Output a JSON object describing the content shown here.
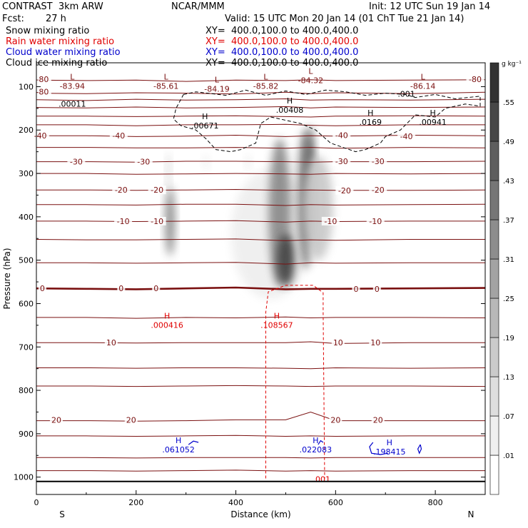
{
  "header": {
    "model": "CONTRAST  3km ARW",
    "org": "NCAR/MMM",
    "init": "Init: 12 UTC Sun 19 Jan 14",
    "fcst_label": "Fcst:",
    "fcst_value": "27 h",
    "valid": "Valid: 15 UTC Mon 20 Jan 14 (01 ChT Tue 21 Jan 14)",
    "fields": [
      {
        "name": "Snow mixing ratio",
        "xy": "XY=  400.0,100.0 to 400.0,400.0",
        "color": "#000000"
      },
      {
        "name": "Rain water mixing ratio",
        "xy": "XY=  400.0,100.0 to 400.0,400.0",
        "color": "#e00000"
      },
      {
        "name": "Cloud water mixing ratio",
        "xy": "XY=  400.0,100.0 to 400.0,400.0",
        "color": "#0000cc"
      },
      {
        "name": "Cloud ice mixing ratio",
        "xy": "XY=  400.0,100.0 to 400.0,400.0",
        "color": "#000000"
      }
    ]
  },
  "chart_data": {
    "type": "heatmap",
    "xlabel": "Distance (km)",
    "ylabel": "Pressure (hPa)",
    "xlim": [
      0,
      900
    ],
    "ylim": [
      1040,
      45
    ],
    "x_ticks": [
      0,
      200,
      400,
      600,
      800
    ],
    "y_ticks": [
      100,
      200,
      300,
      400,
      500,
      600,
      700,
      800,
      900,
      1000
    ],
    "x_end_labels": {
      "left": "S",
      "right": "N"
    },
    "colorbar": {
      "unit": "g kg⁻¹",
      "levels": [
        ".01",
        ".07",
        ".13",
        ".19",
        ".25",
        ".31",
        ".37",
        ".43",
        ".49",
        ".55"
      ],
      "shades": [
        "#ffffff",
        "#efefef",
        "#dedede",
        "#cbcbcb",
        "#b8b8b8",
        "#a3a3a3",
        "#8d8d8d",
        "#767676",
        "#5e5e5e",
        "#474747",
        "#333333"
      ]
    },
    "snow_shading_blobs": [
      {
        "x": 268,
        "p": 410,
        "rx": 10,
        "rp": 80,
        "level": 6
      },
      {
        "x": 265,
        "p": 300,
        "rx": 5,
        "rp": 50,
        "level": 2
      },
      {
        "x": 470,
        "p": 440,
        "rx": 80,
        "rp": 150,
        "level": 1
      },
      {
        "x": 488,
        "p": 390,
        "rx": 22,
        "rp": 170,
        "level": 6
      },
      {
        "x": 500,
        "p": 500,
        "rx": 18,
        "rp": 60,
        "level": 9
      },
      {
        "x": 540,
        "p": 360,
        "rx": 18,
        "rp": 160,
        "level": 6
      },
      {
        "x": 548,
        "p": 330,
        "rx": 10,
        "rp": 140,
        "level": 8
      },
      {
        "x": 565,
        "p": 380,
        "rx": 30,
        "rp": 120,
        "level": 3
      },
      {
        "x": 340,
        "p": 275,
        "rx": 6,
        "rp": 20,
        "level": 1
      },
      {
        "x": 425,
        "p": 275,
        "rx": 6,
        "rp": 20,
        "level": 1
      }
    ],
    "temperature_contours": {
      "color": "#7a1010",
      "levels": [
        {
          "value": -80,
          "p": [
            85,
            86,
            85,
            88,
            85,
            86,
            84,
            86,
            85,
            84
          ]
        },
        {
          "value": -80,
          "p": [
            115,
            116,
            114,
            115,
            117,
            113,
            116,
            114,
            116,
            113
          ]
        },
        {
          "value": -70,
          "p": [
            130,
            132,
            129,
            131,
            130,
            128,
            131,
            130,
            131,
            129
          ]
        },
        {
          "value": -60,
          "p": [
            148,
            149,
            147,
            149,
            148,
            146,
            149,
            147,
            148,
            147
          ]
        },
        {
          "value": -50,
          "p": [
            168,
            168,
            169,
            168,
            167,
            169,
            170,
            168,
            167,
            168
          ]
        },
        {
          "value": -45,
          "p": [
            188,
            188,
            190,
            188,
            188,
            187,
            189,
            190,
            188,
            188
          ]
        },
        {
          "value": -40,
          "p": [
            213,
            213,
            215,
            214,
            212,
            215,
            213,
            214,
            212,
            213
          ]
        },
        {
          "value": -35,
          "p": [
            240,
            240,
            241,
            241,
            240,
            242,
            240,
            242,
            240,
            241
          ]
        },
        {
          "value": -30,
          "p": [
            273,
            273,
            274,
            272,
            272,
            273,
            274,
            273,
            273,
            272
          ]
        },
        {
          "value": -25,
          "p": [
            300,
            300,
            302,
            301,
            300,
            301,
            302,
            300,
            301,
            300
          ]
        },
        {
          "value": -20,
          "p": [
            338,
            338,
            339,
            338,
            337,
            339,
            338,
            339,
            339,
            338
          ]
        },
        {
          "value": -15,
          "p": [
            372,
            372,
            373,
            371,
            371,
            374,
            372,
            373,
            372,
            371
          ]
        },
        {
          "value": -10,
          "p": [
            410,
            410,
            411,
            410,
            409,
            412,
            410,
            411,
            410,
            410
          ]
        },
        {
          "value": -5,
          "p": [
            452,
            453,
            453,
            452,
            451,
            455,
            453,
            454,
            452,
            452
          ]
        },
        {
          "value": -2,
          "p": [
            506,
            506,
            507,
            506,
            505,
            509,
            506,
            507,
            506,
            506
          ]
        },
        {
          "value": 0,
          "p": [
            565,
            566,
            567,
            565,
            563,
            567,
            566,
            566,
            565,
            564
          ]
        },
        {
          "value": 5,
          "p": [
            632,
            632,
            634,
            632,
            633,
            631,
            633,
            632,
            632,
            633
          ]
        },
        {
          "value": 10,
          "p": [
            690,
            690,
            691,
            690,
            690,
            690,
            688,
            692,
            690,
            690
          ]
        },
        {
          "value": 15,
          "p": [
            748,
            748,
            749,
            748,
            748,
            749,
            750,
            748,
            749,
            748
          ]
        },
        {
          "value": 18,
          "p": [
            790,
            790,
            791,
            790,
            789,
            790,
            791,
            790,
            790,
            791
          ]
        },
        {
          "value": 20,
          "p": [
            870,
            870,
            871,
            870,
            868,
            868,
            850,
            870,
            870,
            870
          ]
        },
        {
          "value": 22,
          "p": [
            905,
            905,
            906,
            905,
            904,
            906,
            905,
            906,
            905,
            905
          ]
        },
        {
          "value": 25,
          "p": [
            955,
            955,
            956,
            955,
            955,
            955,
            956,
            955,
            955,
            955
          ]
        },
        {
          "value": 28,
          "p": [
            985,
            985,
            986,
            985,
            984,
            986,
            985,
            986,
            985,
            985
          ]
        }
      ],
      "x": [
        0,
        100,
        200,
        300,
        400,
        500,
        550,
        600,
        750,
        900
      ],
      "labels": [
        {
          "text": "-80",
          "x": 12,
          "p": 83
        },
        {
          "text": "-80",
          "x": 12,
          "p": 112
        },
        {
          "text": "-80",
          "x": 880,
          "p": 83
        },
        {
          "text": "-40",
          "x": 8,
          "p": 213
        },
        {
          "text": "-40",
          "x": 165,
          "p": 213
        },
        {
          "text": "-40",
          "x": 612,
          "p": 212
        },
        {
          "text": "-40",
          "x": 742,
          "p": 214
        },
        {
          "text": "-30",
          "x": 80,
          "p": 273
        },
        {
          "text": "-30",
          "x": 215,
          "p": 273
        },
        {
          "text": "-30",
          "x": 612,
          "p": 272
        },
        {
          "text": "-30",
          "x": 685,
          "p": 272
        },
        {
          "text": "-20",
          "x": 170,
          "p": 338
        },
        {
          "text": "-20",
          "x": 242,
          "p": 338
        },
        {
          "text": "-20",
          "x": 618,
          "p": 339
        },
        {
          "text": "-20",
          "x": 685,
          "p": 338
        },
        {
          "text": "-10",
          "x": 174,
          "p": 410
        },
        {
          "text": "-10",
          "x": 242,
          "p": 410
        },
        {
          "text": "-10",
          "x": 590,
          "p": 410
        },
        {
          "text": "-10",
          "x": 680,
          "p": 410
        },
        {
          "text": "0",
          "x": 12,
          "p": 565
        },
        {
          "text": "0",
          "x": 170,
          "p": 565
        },
        {
          "text": "0",
          "x": 240,
          "p": 565
        },
        {
          "text": "0",
          "x": 641,
          "p": 566
        },
        {
          "text": "0",
          "x": 683,
          "p": 566
        },
        {
          "text": "10",
          "x": 150,
          "p": 690
        },
        {
          "text": "10",
          "x": 605,
          "p": 690
        },
        {
          "text": "10",
          "x": 680,
          "p": 690
        },
        {
          "text": "20",
          "x": 40,
          "p": 868
        },
        {
          "text": "20",
          "x": 190,
          "p": 868
        },
        {
          "text": "20",
          "x": 600,
          "p": 868
        },
        {
          "text": "20",
          "x": 685,
          "p": 868
        }
      ]
    },
    "pressure_extremes": [
      {
        "kind": "L",
        "value": "-83.94",
        "x": 72,
        "p": 97,
        "color": "#7a1010"
      },
      {
        "kind": "",
        "value": ".00011",
        "x": 72,
        "p": 138,
        "color": "#000000"
      },
      {
        "kind": "L",
        "value": "-85.61",
        "x": 260,
        "p": 97,
        "color": "#7a1010"
      },
      {
        "kind": "L",
        "value": "-84.19",
        "x": 362,
        "p": 103,
        "color": "#7a1010"
      },
      {
        "kind": "L",
        "value": "-85.82",
        "x": 460,
        "p": 97,
        "color": "#7a1010"
      },
      {
        "kind": "L",
        "value": "-84.32",
        "x": 550,
        "p": 84,
        "color": "#7a1010"
      },
      {
        "kind": "L",
        "value": "-86.14",
        "x": 775,
        "p": 97,
        "color": "#7a1010"
      },
      {
        "kind": "",
        "value": ".001",
        "x": 742,
        "p": 115,
        "color": "#000000"
      },
      {
        "kind": "H",
        "value": ".00408",
        "x": 508,
        "p": 152,
        "color": "#000000"
      },
      {
        "kind": "H",
        "value": ".00671",
        "x": 338,
        "p": 188,
        "color": "#000000"
      },
      {
        "kind": "H",
        "value": ".0169",
        "x": 670,
        "p": 180,
        "color": "#000000"
      },
      {
        "kind": "H",
        "value": ".00941",
        "x": 795,
        "p": 180,
        "color": "#000000"
      },
      {
        "kind": "H",
        "value": ".000416",
        "x": 262,
        "p": 648,
        "color": "#e00000"
      },
      {
        "kind": "H",
        "value": ".108567",
        "x": 482,
        "p": 648,
        "color": "#e00000"
      },
      {
        "kind": "",
        "value": ".001",
        "x": 572,
        "p": 1003,
        "color": "#e00000"
      },
      {
        "kind": "H",
        "value": ".061052",
        "x": 285,
        "p": 935,
        "color": "#0000cc"
      },
      {
        "kind": "H",
        "value": ".022083",
        "x": 560,
        "p": 935,
        "color": "#0000cc"
      },
      {
        "kind": "H",
        "value": ".198415",
        "x": 708,
        "p": 940,
        "color": "#0000cc"
      }
    ],
    "cloud_ice_contour": {
      "color": "#000000",
      "value": ".001",
      "points": [
        [
          295,
          118
        ],
        [
          320,
          112
        ],
        [
          380,
          120
        ],
        [
          420,
          108
        ],
        [
          460,
          120
        ],
        [
          500,
          110
        ],
        [
          540,
          118
        ],
        [
          580,
          108
        ],
        [
          620,
          112
        ],
        [
          660,
          120
        ],
        [
          700,
          115
        ],
        [
          740,
          118
        ],
        [
          760,
          125
        ],
        [
          800,
          118
        ],
        [
          840,
          128
        ],
        [
          890,
          122
        ],
        [
          890,
          145
        ],
        [
          860,
          140
        ],
        [
          820,
          150
        ],
        [
          800,
          170
        ],
        [
          760,
          165
        ],
        [
          730,
          200
        ],
        [
          700,
          215
        ],
        [
          690,
          230
        ],
        [
          660,
          245
        ],
        [
          640,
          250
        ],
        [
          620,
          242
        ],
        [
          590,
          230
        ],
        [
          560,
          200
        ],
        [
          530,
          185
        ],
        [
          510,
          180
        ],
        [
          490,
          175
        ],
        [
          470,
          170
        ],
        [
          450,
          185
        ],
        [
          440,
          230
        ],
        [
          410,
          245
        ],
        [
          390,
          250
        ],
        [
          360,
          245
        ],
        [
          340,
          220
        ],
        [
          320,
          200
        ],
        [
          290,
          190
        ],
        [
          275,
          175
        ],
        [
          280,
          150
        ],
        [
          295,
          118
        ]
      ]
    },
    "rain_contour": {
      "color": "#e00000",
      "value": ".001",
      "points": [
        [
          460,
          1003
        ],
        [
          460,
          620
        ],
        [
          465,
          573
        ],
        [
          500,
          558
        ],
        [
          555,
          558
        ],
        [
          575,
          575
        ],
        [
          575,
          620
        ],
        [
          578,
          1003
        ]
      ]
    },
    "cloud_water_contours": {
      "color": "#0000cc",
      "segments": [
        [
          [
            305,
            925
          ],
          [
            315,
            917
          ],
          [
            325,
            920
          ]
        ],
        [
          [
            565,
            925
          ],
          [
            570,
            916
          ],
          [
            575,
            920
          ]
        ],
        [
          [
            675,
            920
          ],
          [
            668,
            930
          ],
          [
            672,
            945
          ],
          [
            690,
            948
          ],
          [
            705,
            945
          ]
        ],
        [
          [
            770,
            925
          ],
          [
            772,
            935
          ],
          [
            768,
            945
          ],
          [
            765,
            935
          ],
          [
            770,
            925
          ]
        ]
      ]
    },
    "ground_line_p": 1010
  }
}
